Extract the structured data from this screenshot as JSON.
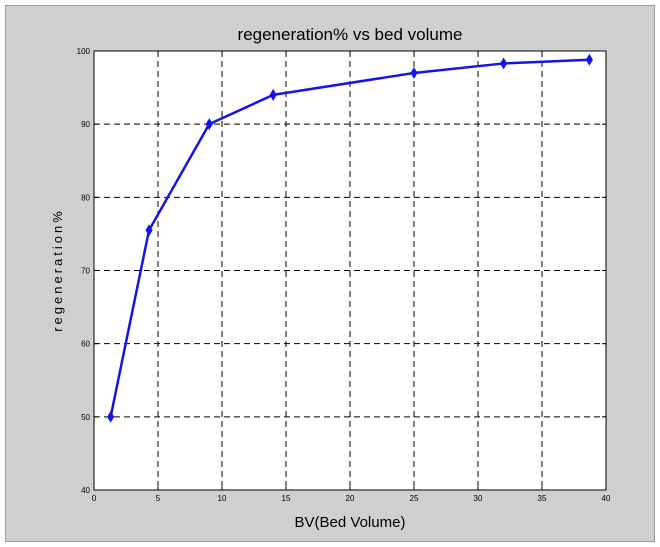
{
  "chart_data": {
    "type": "line",
    "title": "regeneration% vs bed volume",
    "xlabel": "BV(Bed Volume)",
    "ylabel": "regeneration%",
    "xlim": [
      0,
      40
    ],
    "ylim": [
      40,
      100
    ],
    "xticks": [
      0,
      5,
      10,
      15,
      20,
      25,
      30,
      35,
      40
    ],
    "yticks": [
      40,
      50,
      60,
      70,
      80,
      90,
      100
    ],
    "grid": true,
    "grid_style": "dashed",
    "marker": "diamond",
    "line_color": "#1414e6",
    "series": [
      {
        "x": [
          1.3,
          4.3,
          9.0,
          14.0,
          25.0,
          32.0,
          38.7
        ],
        "y": [
          50,
          75.5,
          90,
          94,
          97,
          98.3,
          98.8
        ]
      }
    ]
  }
}
